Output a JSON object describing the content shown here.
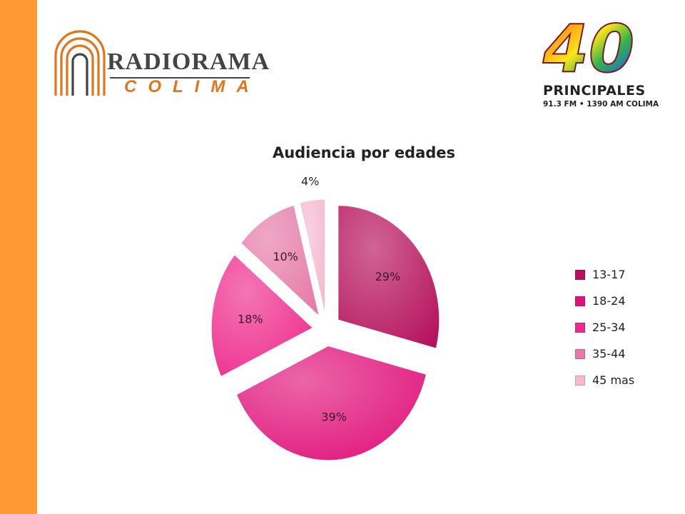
{
  "logos": {
    "left": {
      "main": "RADIORAMA",
      "sub": "COLIMA"
    },
    "right": {
      "number": "40",
      "name": "PRINCIPALES",
      "line": "91.3 FM • 1390 AM COLIMA"
    }
  },
  "chart_data": {
    "type": "pie",
    "title": "Audiencia por edades",
    "categories": [
      "13-17",
      "18-24",
      "25-34",
      "35-44",
      "45 mas"
    ],
    "values": [
      29,
      39,
      18,
      10,
      4
    ],
    "labels": [
      "29%",
      "39%",
      "18%",
      "10%",
      "4%"
    ],
    "colors": [
      "#b5115c",
      "#e0127a",
      "#ee2a8c",
      "#e679a8",
      "#f5b8cf"
    ],
    "exploded": true,
    "legend_position": "right"
  }
}
